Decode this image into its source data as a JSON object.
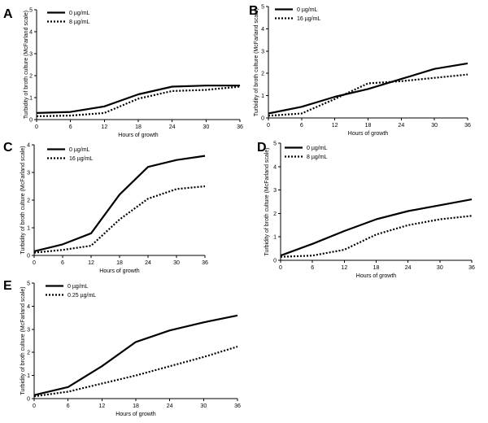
{
  "chart_data": [
    {
      "type": "line",
      "panel": "A",
      "x": [
        0,
        6,
        12,
        18,
        24,
        30,
        36
      ],
      "ylim": [
        0,
        5
      ],
      "yticks": [
        0,
        1,
        2,
        3,
        4,
        5
      ],
      "xlabel": "Hours of growth",
      "ylabel": "Turbidity of broth culture (McFarland scale)",
      "series": [
        {
          "name": "0 µg/mL",
          "style": "solid",
          "values": [
            0.3,
            0.35,
            0.6,
            1.15,
            1.5,
            1.55,
            1.55
          ]
        },
        {
          "name": "8 µg/mL",
          "style": "dotted",
          "values": [
            0.15,
            0.18,
            0.3,
            0.95,
            1.3,
            1.35,
            1.5
          ]
        }
      ]
    },
    {
      "type": "line",
      "panel": "B",
      "x": [
        0,
        6,
        12,
        18,
        24,
        30,
        36
      ],
      "ylim": [
        0,
        5
      ],
      "yticks": [
        0,
        1,
        2,
        3,
        4,
        5
      ],
      "xlabel": "Hours of growth",
      "ylabel": "Turbidity of broth culture (McFarland scale)",
      "series": [
        {
          "name": "0 µg/mL",
          "style": "solid",
          "values": [
            0.2,
            0.5,
            0.95,
            1.3,
            1.75,
            2.2,
            2.45
          ]
        },
        {
          "name": "16 µg/mL",
          "style": "dotted",
          "values": [
            0.1,
            0.2,
            0.85,
            1.55,
            1.65,
            1.8,
            1.95
          ]
        }
      ]
    },
    {
      "type": "line",
      "panel": "C",
      "x": [
        0,
        6,
        12,
        18,
        24,
        30,
        36
      ],
      "ylim": [
        0,
        4
      ],
      "yticks": [
        0,
        1,
        2,
        3,
        4
      ],
      "xlabel": "Hours of growth",
      "ylabel": "Turbidity of broth culture (McFarland scale)",
      "series": [
        {
          "name": "0 µg/mL",
          "style": "solid",
          "values": [
            0.15,
            0.4,
            0.8,
            2.2,
            3.2,
            3.45,
            3.6
          ]
        },
        {
          "name": "16 µg/mL",
          "style": "dotted",
          "values": [
            0.1,
            0.2,
            0.35,
            1.3,
            2.05,
            2.4,
            2.5
          ]
        }
      ]
    },
    {
      "type": "line",
      "panel": "D",
      "x": [
        0,
        6,
        12,
        18,
        24,
        30,
        36
      ],
      "ylim": [
        0,
        5
      ],
      "yticks": [
        0,
        1,
        2,
        3,
        4,
        5
      ],
      "xlabel": "Hours of growth",
      "ylabel": "Turbidity of broth culture (McFarland scale)",
      "series": [
        {
          "name": "0 µg/mL",
          "style": "solid",
          "values": [
            0.2,
            0.7,
            1.25,
            1.75,
            2.1,
            2.35,
            2.6
          ]
        },
        {
          "name": "8 µg/mL",
          "style": "dotted",
          "values": [
            0.15,
            0.2,
            0.45,
            1.1,
            1.5,
            1.75,
            1.9
          ]
        }
      ]
    },
    {
      "type": "line",
      "panel": "E",
      "x": [
        0,
        6,
        12,
        18,
        24,
        30,
        36
      ],
      "ylim": [
        0,
        5
      ],
      "yticks": [
        0,
        1,
        2,
        3,
        4,
        5
      ],
      "xlabel": "Hours of growth",
      "ylabel": "Turbidity of broth culture (McFarland scale)",
      "series": [
        {
          "name": "0 µg/mL",
          "style": "solid",
          "values": [
            0.15,
            0.5,
            1.4,
            2.45,
            2.95,
            3.3,
            3.6
          ]
        },
        {
          "name": "0.25 µg/mL",
          "style": "dotted",
          "values": [
            0.1,
            0.3,
            0.65,
            1.0,
            1.4,
            1.8,
            2.25
          ]
        }
      ]
    }
  ]
}
